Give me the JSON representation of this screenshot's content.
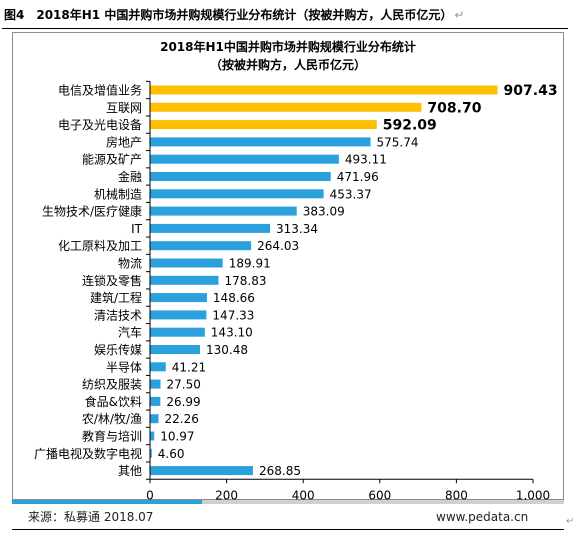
{
  "figure": {
    "caption": "图4　2018年H1 中国并购市场并购规模行业分布统计（按被并购方，人民币亿元）",
    "end_mark": "↵"
  },
  "footer": {
    "source": "来源：私募通 2018.07",
    "url": "www.pedata.cn",
    "end_mark": "↵"
  },
  "colors": {
    "highlight": "#ffc000",
    "bar": "#2aa1dc",
    "axis": "#000000",
    "source_band_left": "#2aa1dc",
    "source_band_right": "#d0d0d0"
  },
  "chart_data": {
    "type": "bar",
    "orientation": "horizontal",
    "title": "2018年H1中国并购市场并购规模行业分布统计",
    "subtitle": "（按被并购方，人民币亿元）",
    "categories": [
      "电信及增值业务",
      "互联网",
      "电子及光电设备",
      "房地产",
      "能源及矿产",
      "金融",
      "机械制造",
      "生物技术/医疗健康",
      "IT",
      "化工原料及加工",
      "物流",
      "连锁及零售",
      "建筑/工程",
      "清洁技术",
      "汽车",
      "娱乐传媒",
      "半导体",
      "纺织及服装",
      "食品&饮料",
      "农/林/牧/渔",
      "教育与培训",
      "广播电视及数字电视",
      "其他"
    ],
    "values": [
      907.43,
      708.7,
      592.09,
      575.74,
      493.11,
      471.96,
      453.37,
      383.09,
      313.34,
      264.03,
      189.91,
      178.83,
      148.66,
      147.33,
      143.1,
      130.48,
      41.21,
      27.5,
      26.99,
      22.26,
      10.97,
      4.6,
      268.85
    ],
    "value_labels": [
      "907.43",
      "708.70",
      "592.09",
      "575.74",
      "493.11",
      "471.96",
      "453.37",
      "383.09",
      "313.34",
      "264.03",
      "189.91",
      "178.83",
      "148.66",
      "147.33",
      "143.10",
      "130.48",
      "41.21",
      "27.50",
      "26.99",
      "22.26",
      "10.97",
      "4.60",
      "268.85"
    ],
    "highlighted_top": 3,
    "xlim": [
      0,
      1000
    ],
    "xticks": [
      0,
      200,
      400,
      600,
      800,
      1000
    ],
    "xtick_labels": [
      "0",
      "200",
      "400",
      "600",
      "800",
      "1,000"
    ],
    "grid": false,
    "legend": "none"
  }
}
